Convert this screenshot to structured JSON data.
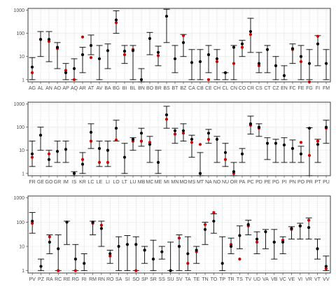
{
  "chart_data": [
    {
      "type": "scatter",
      "yscale": "log",
      "ylim": [
        0.8,
        1200
      ],
      "y_ticks": [
        1,
        10,
        100,
        1000
      ],
      "y_tick_labels": [
        "1",
        "10",
        "100",
        "1000"
      ],
      "grid": true,
      "colors": {
        "point_black": "#000000",
        "point_red": "#cc0000",
        "errorbar": "#000000"
      },
      "categories": [
        "AG",
        "AL",
        "AN",
        "AO",
        "AP",
        "AQ",
        "AR",
        "AT",
        "AV",
        "BA",
        "BG",
        "BI",
        "BL",
        "BN",
        "BO",
        "BR",
        "BS",
        "BT",
        "BZ",
        "CA",
        "CB",
        "CE",
        "CH",
        "CL",
        "CN",
        "CO",
        "CR",
        "CS",
        "CT",
        "CZ",
        "EN",
        "FC",
        "FE",
        "FG",
        "FI",
        "FM"
      ],
      "black_points": [
        3.5,
        55,
        55,
        25,
        2,
        3,
        12,
        30,
        8,
        18,
        380,
        17,
        18,
        1,
        60,
        15,
        550,
        8,
        40,
        5.5,
        6,
        12,
        8,
        2,
        25,
        35,
        120,
        5,
        20,
        4,
        1.5,
        22,
        10,
        5,
        35,
        5
      ],
      "red_points": [
        2,
        55,
        45,
        22,
        2.5,
        1,
        70,
        9,
        null,
        null,
        290,
        12,
        20,
        null,
        null,
        11,
        null,
        null,
        80,
        null,
        null,
        1,
        6,
        null,
        5,
        25,
        90,
        4,
        null,
        null,
        null,
        20,
        6,
        0.6,
        75,
        null
      ],
      "err_low": [
        1,
        10,
        6,
        3,
        1,
        1,
        2,
        12,
        1,
        3,
        100,
        5,
        1,
        0.8,
        12,
        4,
        40,
        2,
        10,
        1,
        1,
        2,
        1,
        1,
        1,
        10,
        15,
        2,
        2,
        1,
        1,
        5,
        1,
        1,
        4,
        1
      ],
      "err_high": [
        9,
        120,
        120,
        40,
        5,
        8,
        25,
        85,
        30,
        35,
        950,
        30,
        30,
        3,
        110,
        28,
        1100,
        30,
        90,
        20,
        20,
        30,
        20,
        2,
        30,
        50,
        450,
        15,
        30,
        10,
        4,
        35,
        30,
        20,
        80,
        20
      ]
    },
    {
      "type": "scatter",
      "yscale": "log",
      "ylim": [
        0.8,
        1200
      ],
      "y_ticks": [
        1,
        10,
        100,
        1000
      ],
      "y_tick_labels": [
        "1",
        "10",
        "100",
        "1000"
      ],
      "grid": true,
      "categories": [
        "FR",
        "GE",
        "GO",
        "GR",
        "IM",
        "IS",
        "KR",
        "LC",
        "LE",
        "LI",
        "LO",
        "LT",
        "LU",
        "MB",
        "MC",
        "ME",
        "MI",
        "MN",
        "MO",
        "MS",
        "MT",
        "NA",
        "NO",
        "NU",
        "OR",
        "PA",
        "PC",
        "PD",
        "PE",
        "PG",
        "PI",
        "PN",
        "PO",
        "PR",
        "PT",
        "PU"
      ],
      "black_points": [
        7,
        45,
        4,
        9,
        11,
        1,
        2.5,
        60,
        12,
        10,
        90,
        5,
        30,
        55,
        18,
        3,
        340,
        70,
        70,
        30,
        1,
        55,
        30,
        8,
        1.2,
        7,
        140,
        100,
        20,
        20,
        17,
        12,
        7,
        90,
        18,
        100
      ],
      "red_points": [
        5,
        null,
        7,
        null,
        null,
        1,
        4,
        25,
        3,
        3,
        28,
        null,
        25,
        25,
        22,
        null,
        220,
        50,
        55,
        22,
        18,
        30,
        null,
        4,
        1,
        null,
        120,
        90,
        null,
        null,
        null,
        null,
        22,
        6,
        25,
        90
      ],
      "err_low": [
        2,
        10,
        2,
        3,
        3,
        0.8,
        1,
        12,
        2,
        2,
        25,
        1,
        10,
        15,
        3,
        1,
        90,
        20,
        25,
        5,
        0.8,
        20,
        3,
        2,
        0.8,
        3,
        50,
        40,
        4,
        3,
        3,
        3,
        3,
        0.8,
        3,
        20
      ],
      "err_high": [
        25,
        100,
        10,
        25,
        25,
        1.2,
        8,
        140,
        25,
        25,
        200,
        20,
        35,
        90,
        40,
        10,
        800,
        90,
        140,
        45,
        8,
        80,
        40,
        20,
        3,
        12,
        300,
        140,
        35,
        30,
        35,
        28,
        15,
        95,
        30,
        200
      ]
    },
    {
      "type": "scatter",
      "yscale": "log",
      "ylim": [
        0.8,
        1200
      ],
      "y_ticks": [
        1,
        10,
        100,
        1000
      ],
      "y_tick_labels": [
        "1",
        "10",
        "100",
        "1000"
      ],
      "grid": true,
      "categories": [
        "PV",
        "PZ",
        "RA",
        "RC",
        "RE",
        "RG",
        "RI",
        "RM",
        "RN",
        "RO",
        "SA",
        "SI",
        "SO",
        "SP",
        "SR",
        "SS",
        "SU",
        "SV",
        "TA",
        "TE",
        "TN",
        "TO",
        "TP",
        "TR",
        "TS",
        "TV",
        "UD",
        "VA",
        "VB",
        "VC",
        "VE",
        "VI",
        "VR",
        "VT",
        "VV"
      ],
      "black_points": [
        110,
        1.5,
        15,
        8,
        100,
        3,
        2,
        100,
        55,
        5,
        10,
        12,
        12,
        7,
        3,
        6,
        1,
        10,
        5,
        7,
        50,
        110,
        2,
        10,
        28,
        80,
        20,
        40,
        15,
        15,
        55,
        70,
        60,
        8,
        1.5
      ],
      "red_points": [
        90,
        null,
        25,
        1,
        100,
        1,
        null,
        90,
        75,
        4,
        null,
        null,
        1,
        7,
        null,
        null,
        null,
        22,
        2,
        6,
        80,
        250,
        null,
        12,
        3,
        70,
        15,
        null,
        15,
        18,
        50,
        70,
        120,
        8,
        1.2
      ],
      "err_low": [
        35,
        1,
        5,
        1,
        12,
        1,
        1,
        30,
        10,
        2,
        1,
        1,
        1,
        2,
        1,
        3,
        1,
        1,
        1,
        2,
        12,
        35,
        1,
        5,
        8,
        30,
        5,
        8,
        3,
        5,
        20,
        20,
        20,
        3,
        1
      ],
      "err_high": [
        250,
        3,
        30,
        30,
        110,
        12,
        5,
        110,
        110,
        7,
        25,
        28,
        25,
        10,
        18,
        10,
        15,
        30,
        25,
        10,
        100,
        220,
        25,
        22,
        70,
        120,
        40,
        50,
        50,
        25,
        65,
        90,
        150,
        20,
        4
      ]
    }
  ]
}
